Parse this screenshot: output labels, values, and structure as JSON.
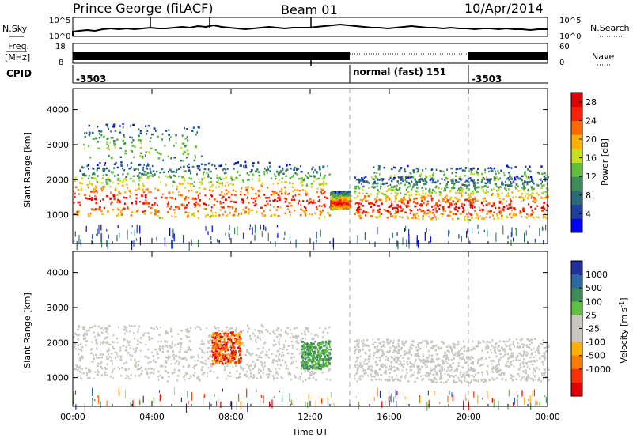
{
  "header": {
    "station": "Prince George (fitACF)",
    "beam": "Beam 01",
    "date": "10/Apr/2014"
  },
  "panels": {
    "nsky": {
      "left_label": "N.Sky",
      "right_label": "N.Search",
      "left_ticks": [
        "10^5",
        "10^0"
      ],
      "right_ticks": [
        "10^5",
        "10^0"
      ]
    },
    "freq": {
      "label_line1": "Freq.",
      "label_line2": "[MHz]",
      "left_ticks": [
        "18",
        "8"
      ],
      "right_ticks": [
        "60",
        "0"
      ],
      "right_label": "Nave"
    },
    "cpid": {
      "label": "CPID",
      "segments": [
        "-3503",
        "normal (fast) 151",
        "-3503"
      ]
    }
  },
  "chart_data": [
    {
      "type": "heatmap",
      "title": "",
      "xlabel": "",
      "ylabel": "Slant Range [km]",
      "x_ticks": [
        "00:00",
        "04:00",
        "08:00",
        "12:00",
        "16:00",
        "20:00",
        "00:00"
      ],
      "y_ticks": [
        1000,
        2000,
        3000,
        4000
      ],
      "xlim_hours": [
        0,
        24
      ],
      "ylim_km": [
        180,
        4600
      ],
      "colorbar": {
        "label": "Power [dB]",
        "ticks": [
          4,
          8,
          12,
          16,
          20,
          24,
          28
        ],
        "range": [
          0,
          30
        ],
        "colors": [
          "#0000ff",
          "#1e3fa0",
          "#2a6a78",
          "#3c8c5a",
          "#5fbf3a",
          "#c8e020",
          "#ffb000",
          "#ff6a00",
          "#ff2000",
          "#e00000"
        ]
      },
      "scatter_regions": [
        {
          "x_hours": [
            0.0,
            13.0
          ],
          "range_km": [
            950,
            2500
          ],
          "level": "dense-high"
        },
        {
          "x_hours": [
            13.0,
            14.0
          ],
          "range_km": [
            1200,
            1700
          ],
          "level": "dense-mid"
        },
        {
          "x_hours": [
            14.2,
            24.0
          ],
          "range_km": [
            900,
            2100
          ],
          "level": "dense-mid"
        },
        {
          "x_hours": [
            0.5,
            6.5
          ],
          "range_km": [
            2600,
            3600
          ],
          "level": "sparse"
        },
        {
          "x_hours": [
            15.0,
            24.0
          ],
          "range_km": [
            2000,
            2400
          ],
          "level": "sparse"
        }
      ]
    },
    {
      "type": "heatmap",
      "title": "",
      "xlabel": "Time UT",
      "ylabel": "Slant Range [km]",
      "x_ticks": [
        "00:00",
        "04:00",
        "08:00",
        "12:00",
        "16:00",
        "20:00",
        "00:00"
      ],
      "y_ticks": [
        1000,
        2000,
        3000,
        4000
      ],
      "xlim_hours": [
        0,
        24
      ],
      "ylim_km": [
        180,
        4600
      ],
      "colorbar": {
        "label": "Velocity [m s^-1]",
        "ticks": [
          1000,
          500,
          100,
          25,
          -25,
          -100,
          -500,
          -1000
        ],
        "colors": [
          "#2030a0",
          "#2a6aa0",
          "#3c8c5a",
          "#60c040",
          "#c8c8c0",
          "#c8c8c0",
          "#ffb000",
          "#ff7a00",
          "#ff3000",
          "#e00000"
        ]
      },
      "scatter_regions": [
        {
          "x_hours": [
            0.0,
            13.0
          ],
          "range_km": [
            950,
            2500
          ],
          "level": "ground-scatter"
        },
        {
          "x_hours": [
            7.0,
            8.5
          ],
          "range_km": [
            1400,
            2300
          ],
          "level": "negative-velocity"
        },
        {
          "x_hours": [
            11.5,
            13.0
          ],
          "range_km": [
            1300,
            2100
          ],
          "level": "positive-velocity"
        },
        {
          "x_hours": [
            14.2,
            24.0
          ],
          "range_km": [
            900,
            2100
          ],
          "level": "ground-scatter"
        }
      ]
    }
  ]
}
